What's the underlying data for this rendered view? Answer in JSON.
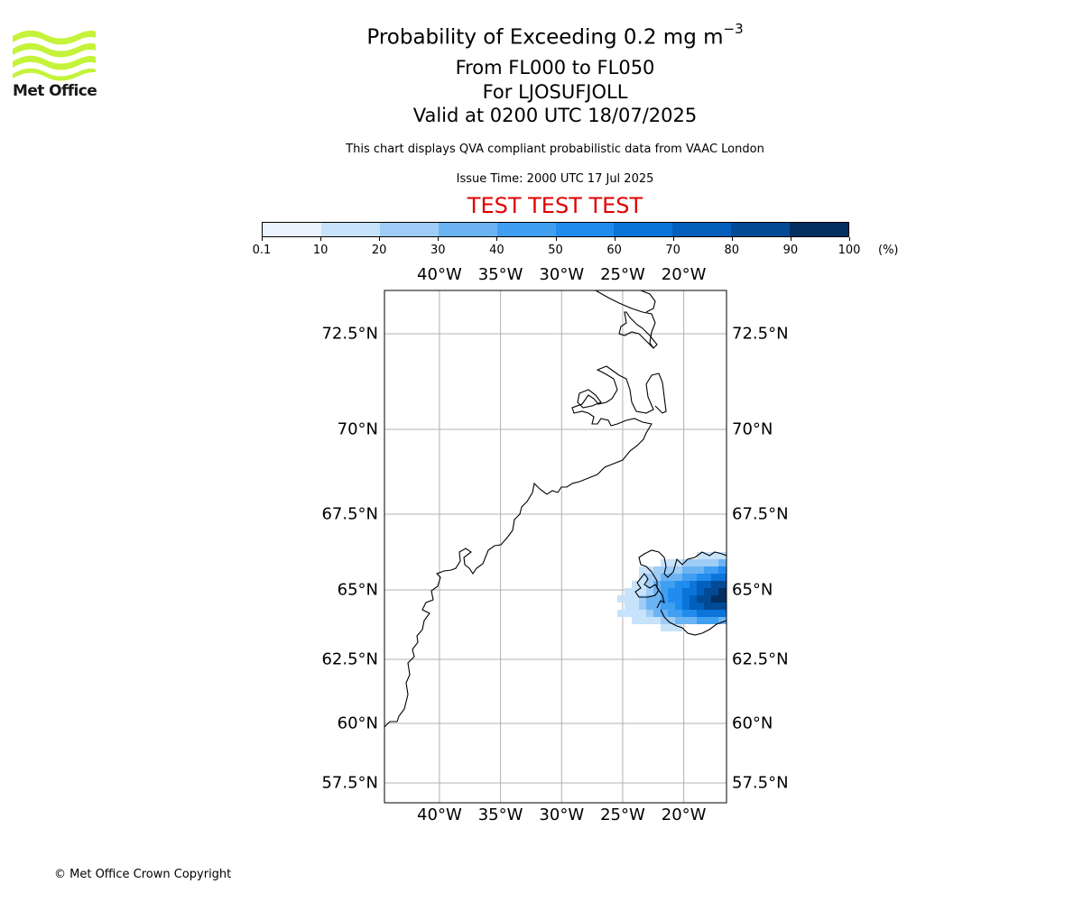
{
  "logo": {
    "name": "Met Office",
    "color": "#c4f33a"
  },
  "title": {
    "main_prefix": "Probability of Exceeding 0.2 mg m",
    "main_exponent": "−3",
    "level_range": "From FL000 to FL050",
    "volcano": "For LJOSUFJOLL",
    "valid": "Valid at 0200 UTC 18/07/2025",
    "description": "This chart displays QVA compliant probabilistic data from VAAC London",
    "issue_time": "Issue Time: 2000 UTC 17 Jul 2025",
    "test_banner": "TEST TEST TEST"
  },
  "colorbar": {
    "unit": "(%)",
    "boundaries": [
      "0.1",
      "10",
      "20",
      "30",
      "40",
      "50",
      "60",
      "70",
      "80",
      "90",
      "100"
    ],
    "colors": [
      "#eaf3fe",
      "#c7e2fb",
      "#9fcdf7",
      "#6cb3f4",
      "#409ff1",
      "#1f8cee",
      "#0a74d9",
      "#025fbc",
      "#034a95",
      "#032f61"
    ]
  },
  "map": {
    "longitudes": [
      -40,
      -35,
      -30,
      -25,
      -20
    ],
    "lon_labels": [
      "40°W",
      "35°W",
      "30°W",
      "25°W",
      "20°W"
    ],
    "latitudes": [
      72.5,
      70,
      67.5,
      65,
      62.5,
      60,
      57.5
    ],
    "lat_labels": [
      "72.5°N",
      "70°N",
      "67.5°N",
      "65°N",
      "62.5°N",
      "60°N",
      "57.5°N"
    ],
    "extent": {
      "lon_min": -44.5,
      "lon_max": -16.5,
      "lat_min": 56.8,
      "lat_max": 73.7
    },
    "grid_color": "#b0b0b0"
  },
  "copyright": "© Met Office Crown Copyright"
}
